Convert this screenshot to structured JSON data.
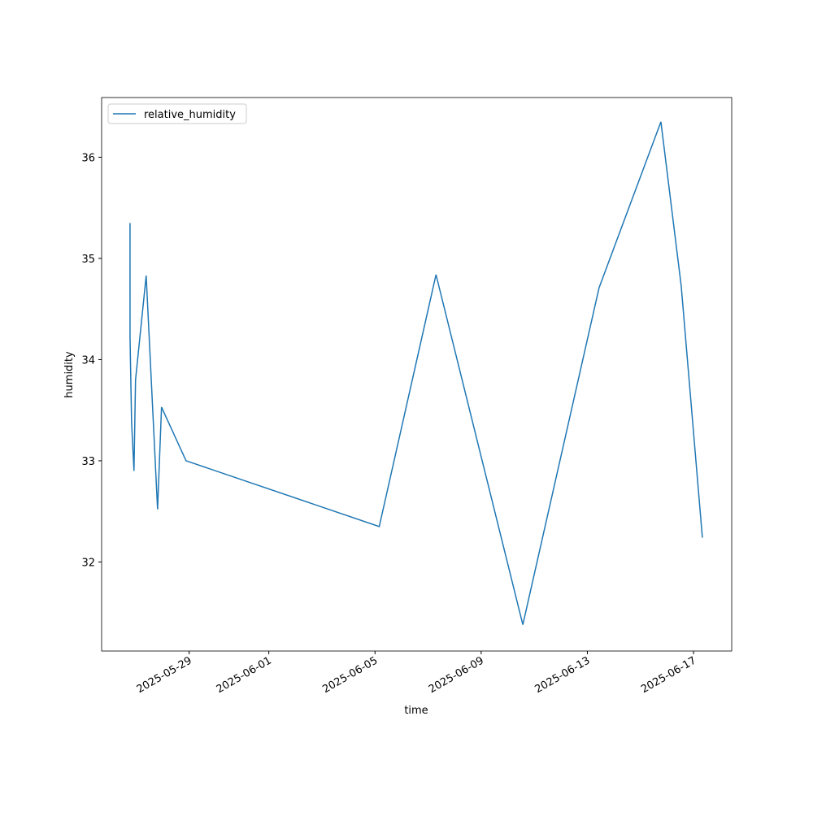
{
  "chart_data": {
    "type": "line",
    "xlabel": "time",
    "ylabel": "humidity",
    "x": [
      "2025-05-26T18:30",
      "2025-05-26T18:31",
      "2025-05-26T19:55",
      "2025-05-26T22:05",
      "2025-05-26T23:30",
      "2025-05-27T09:07",
      "2025-05-27T19:25",
      "2025-05-27T23:00",
      "2025-05-28T21:10",
      "2025-06-05T03:50",
      "2025-06-07T07:10",
      "2025-06-10T13:40",
      "2025-06-13T10:35",
      "2025-06-15T18:30",
      "2025-06-16T12:50",
      "2025-06-17T08:00"
    ],
    "series": [
      {
        "name": "relative_humidity",
        "color": "#1f77b4",
        "values": [
          35.35,
          34.22,
          33.38,
          32.9,
          33.8,
          34.83,
          32.52,
          33.53,
          33.0,
          32.35,
          34.84,
          31.38,
          34.71,
          36.35,
          34.73,
          32.24
        ]
      }
    ],
    "xlim": [
      "2025-05-25T16:50",
      "2025-06-18T10:30"
    ],
    "xticks": [
      "2025-05-29",
      "2025-06-01",
      "2025-06-05",
      "2025-06-09",
      "2025-06-13",
      "2025-06-17"
    ],
    "ylim": [
      31.12,
      36.59
    ],
    "yticks": [
      32,
      33,
      34,
      35,
      36
    ],
    "grid": false,
    "legend": "upper left"
  }
}
